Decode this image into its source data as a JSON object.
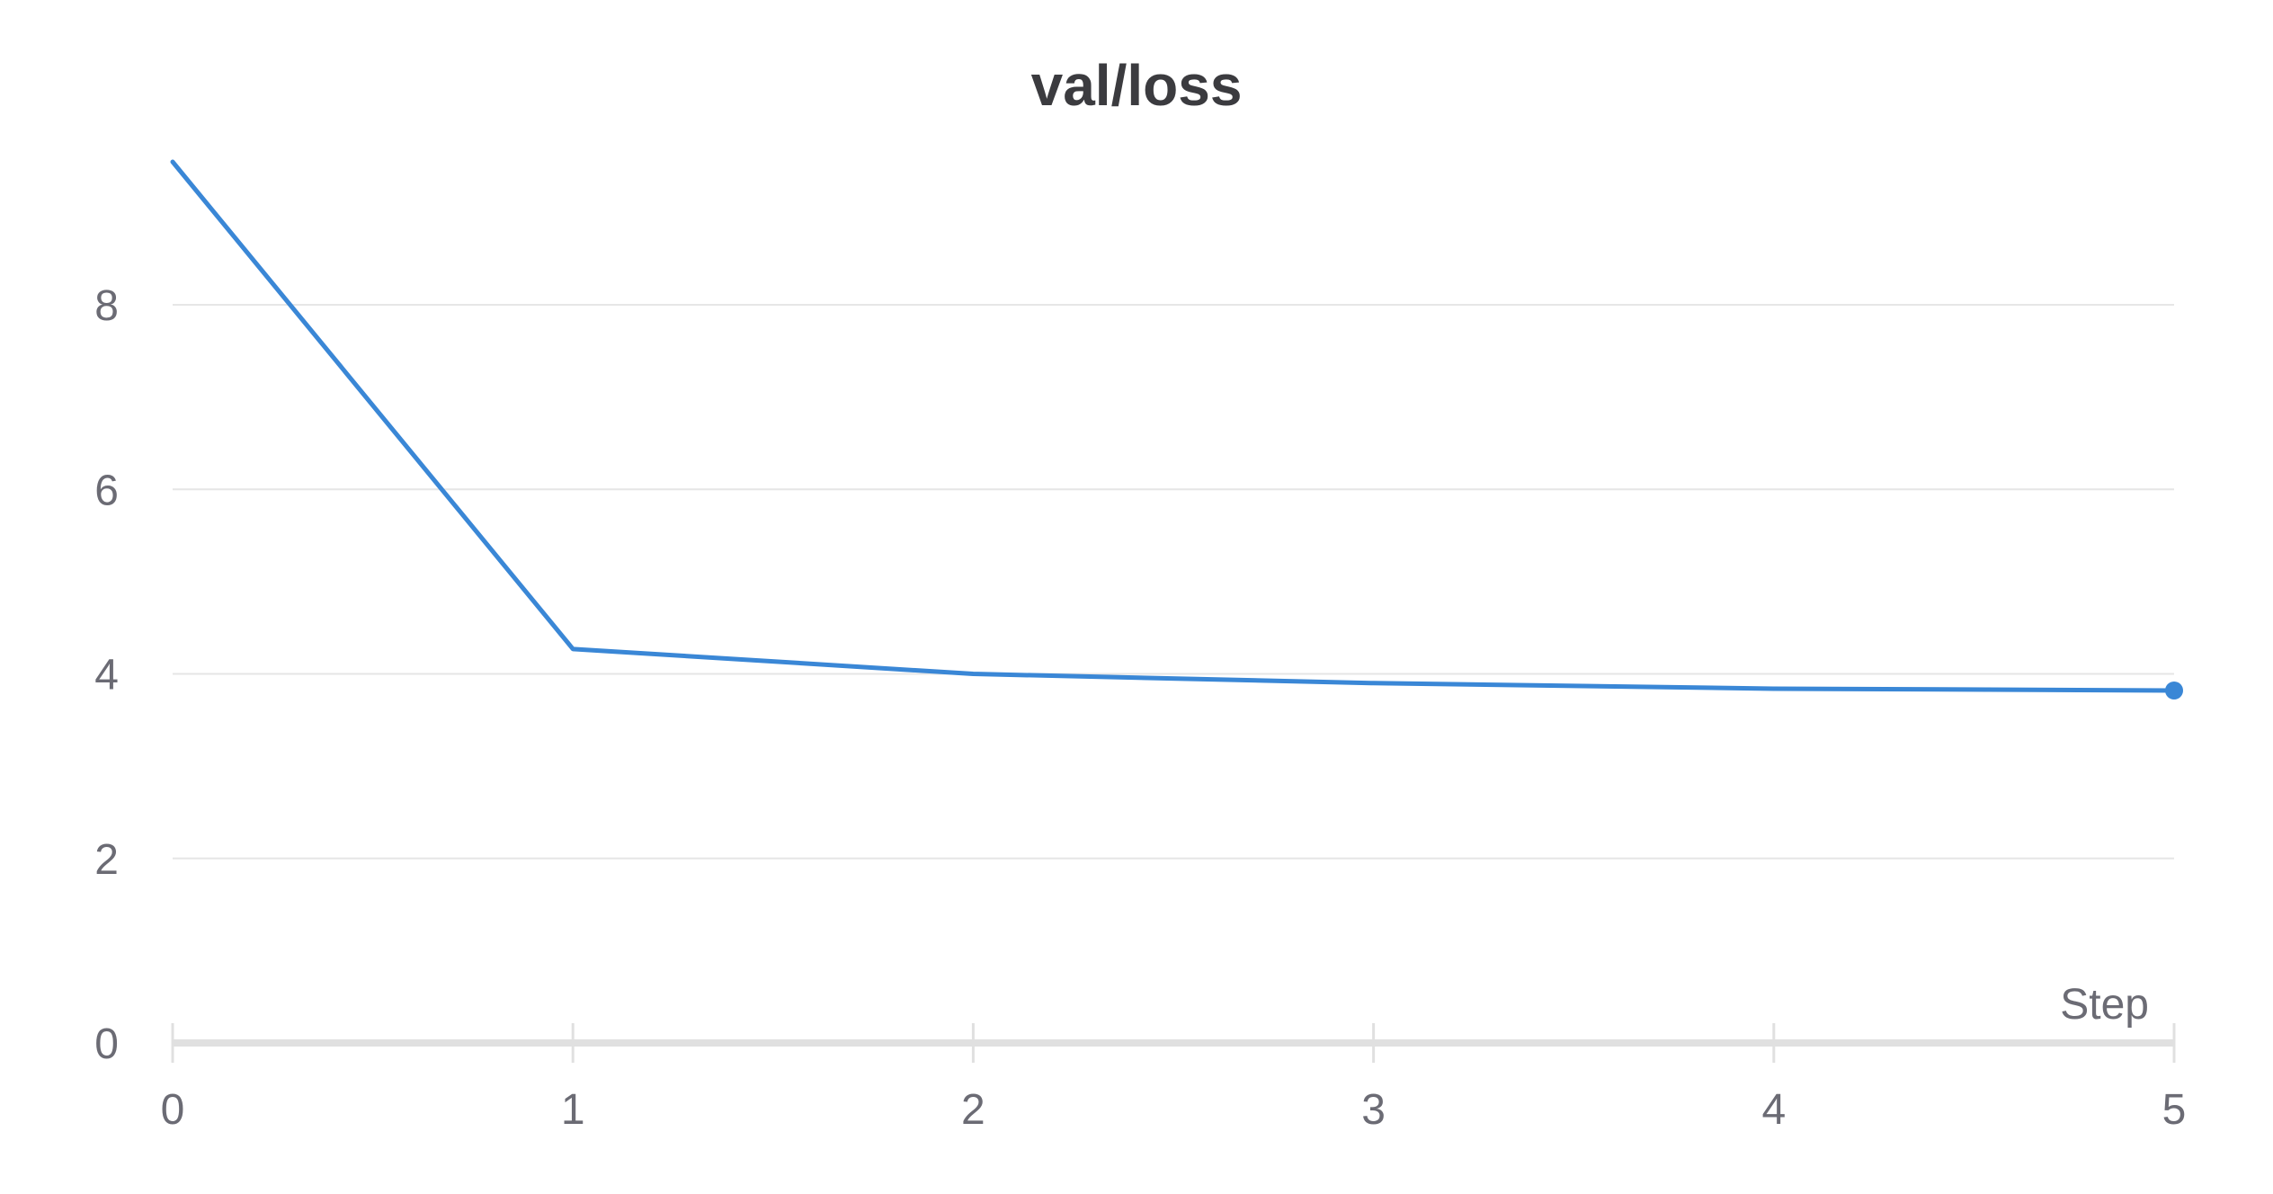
{
  "chart_data": {
    "type": "line",
    "title": "val/loss",
    "xlabel": "Step",
    "ylabel": "",
    "x": [
      0,
      1,
      2,
      3,
      4,
      5
    ],
    "series": [
      {
        "values": [
          9.55,
          4.27,
          4.0,
          3.9,
          3.84,
          3.82
        ]
      }
    ],
    "xlim": [
      0,
      5
    ],
    "ylim": [
      0,
      9.55
    ],
    "xticks": [
      "0",
      "1",
      "2",
      "3",
      "4",
      "5"
    ],
    "yticks": [
      "0",
      "2",
      "4",
      "6",
      "8"
    ],
    "grid": true,
    "legend": "none",
    "colors": {
      "line": "#3a87d6",
      "grid": "#e6e6e6",
      "axis": "#e0e0e0",
      "text": "#6b6b74",
      "title": "#3b3b3f"
    }
  }
}
